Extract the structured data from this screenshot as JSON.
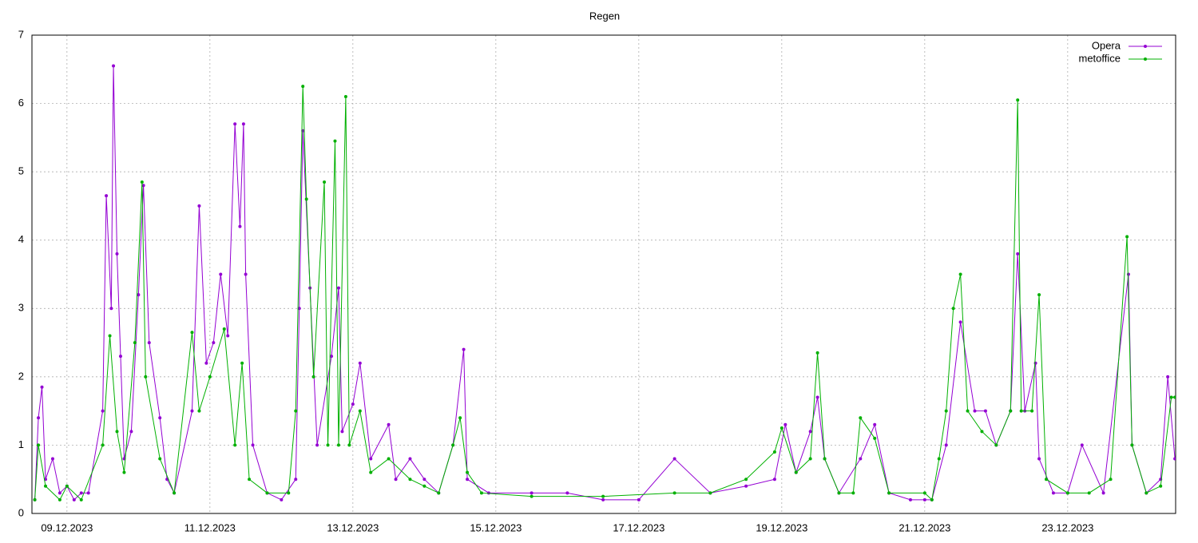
{
  "chart_data": {
    "type": "line",
    "title": "Regen",
    "xlim": [
      8.51,
      24.51
    ],
    "xticks": [
      {
        "value": 9,
        "label": "09.12.2023"
      },
      {
        "value": 11,
        "label": "11.12.2023"
      },
      {
        "value": 13,
        "label": "13.12.2023"
      },
      {
        "value": 15,
        "label": "15.12.2023"
      },
      {
        "value": 17,
        "label": "17.12.2023"
      },
      {
        "value": 19,
        "label": "19.12.2023"
      },
      {
        "value": 21,
        "label": "21.12.2023"
      },
      {
        "value": 23,
        "label": "23.12.2023"
      }
    ],
    "ylim": [
      0,
      7
    ],
    "yticks": [
      0,
      1,
      2,
      3,
      4,
      5,
      6,
      7
    ],
    "grid": true,
    "legend": "top-right",
    "series": [
      {
        "name": "Opera",
        "color": "#9400d3",
        "x": [
          8.55,
          8.6,
          8.65,
          8.7,
          8.8,
          8.9,
          9.0,
          9.1,
          9.2,
          9.3,
          9.5,
          9.55,
          9.62,
          9.65,
          9.7,
          9.75,
          9.8,
          9.9,
          10.0,
          10.07,
          10.15,
          10.3,
          10.4,
          10.5,
          10.75,
          10.85,
          10.95,
          11.05,
          11.15,
          11.25,
          11.35,
          11.42,
          11.47,
          11.5,
          11.6,
          11.8,
          12.0,
          12.2,
          12.25,
          12.3,
          12.4,
          12.5,
          12.7,
          12.8,
          12.85,
          13.0,
          13.1,
          13.25,
          13.5,
          13.6,
          13.8,
          14.0,
          14.2,
          14.4,
          14.55,
          14.6,
          14.9,
          15.5,
          16.0,
          16.5,
          17.0,
          17.5,
          18.0,
          18.5,
          18.9,
          19.05,
          19.2,
          19.4,
          19.5,
          19.6,
          19.8,
          20.1,
          20.3,
          20.5,
          20.8,
          21.0,
          21.1,
          21.3,
          21.5,
          21.7,
          21.85,
          22.0,
          22.2,
          22.3,
          22.4,
          22.55,
          22.6,
          22.8,
          23.0,
          23.2,
          23.5,
          23.85,
          23.9,
          24.1,
          24.3,
          24.4,
          24.5
        ],
        "values": [
          0.2,
          1.4,
          1.85,
          0.5,
          0.8,
          0.3,
          0.4,
          0.2,
          0.3,
          0.3,
          1.5,
          4.65,
          3.0,
          6.55,
          3.8,
          2.3,
          0.8,
          1.2,
          3.2,
          4.8,
          2.5,
          1.4,
          0.5,
          0.3,
          1.5,
          4.5,
          2.2,
          2.5,
          3.5,
          2.6,
          5.7,
          4.2,
          5.7,
          3.5,
          1.0,
          0.3,
          0.2,
          0.5,
          3.0,
          5.6,
          3.3,
          1.0,
          2.3,
          3.3,
          1.2,
          1.6,
          2.2,
          0.8,
          1.3,
          0.5,
          0.8,
          0.5,
          0.3,
          1.0,
          2.4,
          0.5,
          0.3,
          0.3,
          0.3,
          0.2,
          0.2,
          0.8,
          0.3,
          0.4,
          0.5,
          1.3,
          0.6,
          1.2,
          1.7,
          0.8,
          0.3,
          0.8,
          1.3,
          0.3,
          0.2,
          0.2,
          0.2,
          1.0,
          2.8,
          1.5,
          1.5,
          1.0,
          1.5,
          3.8,
          1.5,
          2.2,
          0.8,
          0.3,
          0.3,
          1.0,
          0.3,
          3.5,
          1.0,
          0.3,
          0.5,
          2.0,
          0.8
        ]
      },
      {
        "name": "metoffice",
        "color": "#00b000",
        "x": [
          8.55,
          8.6,
          8.7,
          8.9,
          9.0,
          9.2,
          9.5,
          9.6,
          9.7,
          9.8,
          9.95,
          10.05,
          10.1,
          10.3,
          10.5,
          10.75,
          10.85,
          11.0,
          11.2,
          11.35,
          11.45,
          11.55,
          11.8,
          12.1,
          12.2,
          12.3,
          12.35,
          12.45,
          12.6,
          12.65,
          12.75,
          12.8,
          12.9,
          12.95,
          13.1,
          13.25,
          13.5,
          13.8,
          14.0,
          14.2,
          14.4,
          14.5,
          14.6,
          14.8,
          15.5,
          16.5,
          17.5,
          18.0,
          18.5,
          18.9,
          19.0,
          19.2,
          19.4,
          19.5,
          19.6,
          19.8,
          20.0,
          20.1,
          20.3,
          20.5,
          21.0,
          21.1,
          21.2,
          21.3,
          21.4,
          21.5,
          21.6,
          21.8,
          22.0,
          22.2,
          22.3,
          22.35,
          22.5,
          22.6,
          22.7,
          23.0,
          23.3,
          23.6,
          23.83,
          23.9,
          24.1,
          24.3,
          24.45,
          24.5
        ],
        "values": [
          0.2,
          1.0,
          0.4,
          0.2,
          0.4,
          0.2,
          1.0,
          2.6,
          1.2,
          0.6,
          2.5,
          4.85,
          2.0,
          0.8,
          0.3,
          2.65,
          1.5,
          2.0,
          2.7,
          1.0,
          2.2,
          0.5,
          0.3,
          0.3,
          1.5,
          6.25,
          4.6,
          2.0,
          4.85,
          1.0,
          5.45,
          1.0,
          6.1,
          1.0,
          1.5,
          0.6,
          0.8,
          0.5,
          0.4,
          0.3,
          1.0,
          1.4,
          0.6,
          0.3,
          0.25,
          0.25,
          0.3,
          0.3,
          0.5,
          0.9,
          1.25,
          0.6,
          0.8,
          2.35,
          0.8,
          0.3,
          0.3,
          1.4,
          1.1,
          0.3,
          0.3,
          0.2,
          0.8,
          1.5,
          3.0,
          3.5,
          1.5,
          1.2,
          1.0,
          1.5,
          6.05,
          1.5,
          1.5,
          3.2,
          0.5,
          0.3,
          0.3,
          0.5,
          4.05,
          1.0,
          0.3,
          0.4,
          1.7,
          1.7
        ]
      }
    ]
  }
}
